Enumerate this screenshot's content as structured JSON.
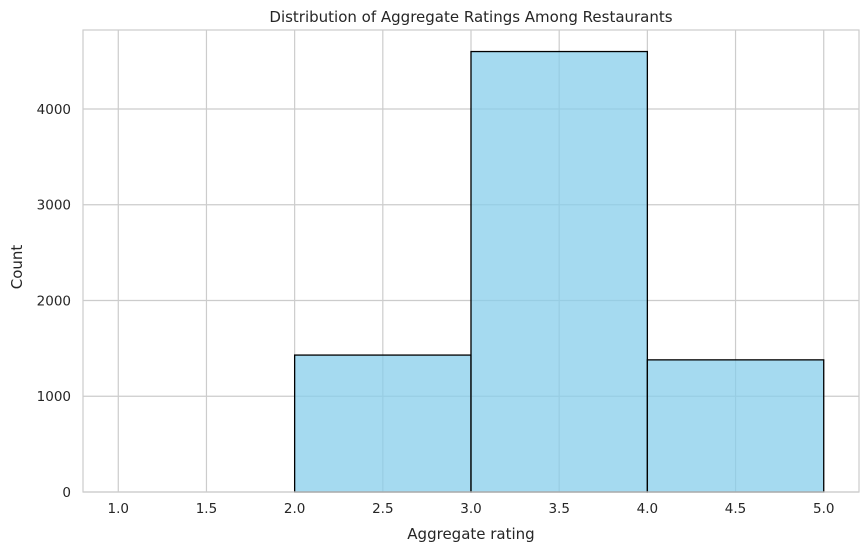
{
  "chart_data": {
    "type": "bar",
    "title": "Distribution of Aggregate Ratings Among Restaurants",
    "xlabel": "Aggregate rating",
    "ylabel": "Count",
    "xlim": [
      0.8,
      5.2
    ],
    "ylim": [
      0,
      4825
    ],
    "xticks": [
      1.0,
      1.5,
      2.0,
      2.5,
      3.0,
      3.5,
      4.0,
      4.5,
      5.0
    ],
    "xtick_labels": [
      "1.0",
      "1.5",
      "2.0",
      "2.5",
      "3.0",
      "3.5",
      "4.0",
      "4.5",
      "5.0"
    ],
    "yticks": [
      0,
      1000,
      2000,
      3000,
      4000
    ],
    "ytick_labels": [
      "0",
      "1000",
      "2000",
      "3000",
      "4000"
    ],
    "bins": [
      {
        "x0": 1.0,
        "x1": 2.0,
        "count": 0
      },
      {
        "x0": 2.0,
        "x1": 3.0,
        "count": 1430
      },
      {
        "x0": 3.0,
        "x1": 4.0,
        "count": 4600
      },
      {
        "x0": 4.0,
        "x1": 5.0,
        "count": 1380
      }
    ],
    "grid": true,
    "bar_color": "#87ceeb",
    "edge_color": "#000000"
  }
}
